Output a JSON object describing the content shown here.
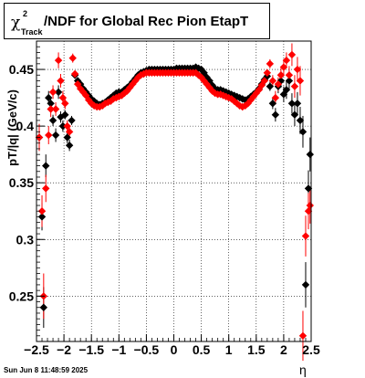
{
  "title": {
    "symbol": "χ",
    "superscript": "2",
    "subscript": "Track",
    "text": "/NDF for Global Rec Pion EtapT"
  },
  "timestamp": "Sun Jun  8 11:48:59 2025",
  "colors": {
    "series_black": "#000000",
    "series_red": "#ff0000",
    "grid": "#000000"
  },
  "chart_data": {
    "type": "scatter",
    "xlabel": "η",
    "ylabel": "pT/|q| (GeV/c)",
    "xlim": [
      -2.5,
      2.5
    ],
    "ylim": [
      0.21,
      0.475
    ],
    "x_ticks": [
      -2.5,
      -2,
      -1.5,
      -1,
      -0.5,
      0,
      0.5,
      1,
      1.5,
      2,
      2.5
    ],
    "x_tick_labels": [
      "−2.5",
      "−2",
      "−1.5",
      "−1",
      "−0.5",
      "0",
      "0.5",
      "1",
      "1.5",
      "2",
      "2.5"
    ],
    "y_ticks": [
      0.25,
      0.3,
      0.35,
      0.4,
      0.45
    ],
    "y_tick_labels": [
      "0.25",
      "0.3",
      "0.35",
      "0.4",
      "0.45"
    ],
    "grid": true,
    "series": [
      {
        "color": "#000000",
        "points": [
          [
            -2.45,
            0.39,
            0.01
          ],
          [
            -2.4,
            0.32,
            0.012
          ],
          [
            -2.37,
            0.24,
            0.018
          ],
          [
            -2.33,
            0.365,
            0.01
          ],
          [
            -2.28,
            0.425,
            0.006
          ],
          [
            -2.24,
            0.42,
            0.006
          ],
          [
            -2.2,
            0.405,
            0.005
          ],
          [
            -2.15,
            0.392,
            0.006
          ],
          [
            -2.1,
            0.43,
            0.006
          ],
          [
            -2.06,
            0.408,
            0.005
          ],
          [
            -2.02,
            0.4,
            0.005
          ],
          [
            -1.98,
            0.41,
            0.004
          ],
          [
            -1.94,
            0.39,
            0.005
          ],
          [
            -1.9,
            0.383,
            0.005
          ],
          [
            -1.86,
            0.405,
            0.004
          ],
          [
            -1.8,
            0.445,
            0.003
          ],
          [
            -1.75,
            0.44,
            0.003
          ],
          [
            -1.7,
            0.437,
            0.002
          ],
          [
            -1.65,
            0.433,
            0.002
          ],
          [
            -1.6,
            0.43,
            0.002
          ],
          [
            -1.55,
            0.427,
            0.002
          ],
          [
            -1.5,
            0.424,
            0.002
          ],
          [
            -1.45,
            0.422,
            0.002
          ],
          [
            -1.4,
            0.42,
            0.002
          ],
          [
            -1.35,
            0.419,
            0.002
          ],
          [
            -1.3,
            0.42,
            0.002
          ],
          [
            -1.25,
            0.421,
            0.002
          ],
          [
            -1.2,
            0.423,
            0.002
          ],
          [
            -1.15,
            0.425,
            0.002
          ],
          [
            -1.1,
            0.427,
            0.002
          ],
          [
            -1.05,
            0.429,
            0.002
          ],
          [
            -1.0,
            0.43,
            0.002
          ],
          [
            -0.95,
            0.43,
            0.002
          ],
          [
            -0.9,
            0.432,
            0.002
          ],
          [
            -0.85,
            0.434,
            0.002
          ],
          [
            -0.8,
            0.436,
            0.002
          ],
          [
            -0.75,
            0.439,
            0.002
          ],
          [
            -0.7,
            0.442,
            0.002
          ],
          [
            -0.65,
            0.445,
            0.002
          ],
          [
            -0.6,
            0.447,
            0.002
          ],
          [
            -0.55,
            0.448,
            0.002
          ],
          [
            -0.5,
            0.449,
            0.002
          ],
          [
            -0.45,
            0.45,
            0.002
          ],
          [
            -0.4,
            0.45,
            0.002
          ],
          [
            -0.35,
            0.45,
            0.002
          ],
          [
            -0.3,
            0.45,
            0.002
          ],
          [
            -0.25,
            0.45,
            0.002
          ],
          [
            -0.2,
            0.45,
            0.002
          ],
          [
            -0.15,
            0.45,
            0.002
          ],
          [
            -0.1,
            0.45,
            0.002
          ],
          [
            -0.05,
            0.45,
            0.002
          ],
          [
            0.0,
            0.45,
            0.002
          ],
          [
            0.05,
            0.451,
            0.002
          ],
          [
            0.1,
            0.451,
            0.002
          ],
          [
            0.15,
            0.451,
            0.002
          ],
          [
            0.2,
            0.451,
            0.002
          ],
          [
            0.25,
            0.451,
            0.002
          ],
          [
            0.3,
            0.451,
            0.002
          ],
          [
            0.35,
            0.451,
            0.002
          ],
          [
            0.4,
            0.452,
            0.002
          ],
          [
            0.45,
            0.451,
            0.002
          ],
          [
            0.5,
            0.45,
            0.002
          ],
          [
            0.55,
            0.447,
            0.002
          ],
          [
            0.6,
            0.443,
            0.002
          ],
          [
            0.65,
            0.44,
            0.002
          ],
          [
            0.7,
            0.436,
            0.002
          ],
          [
            0.75,
            0.433,
            0.002
          ],
          [
            0.8,
            0.432,
            0.002
          ],
          [
            0.85,
            0.432,
            0.002
          ],
          [
            0.9,
            0.431,
            0.002
          ],
          [
            0.95,
            0.43,
            0.002
          ],
          [
            1.0,
            0.429,
            0.002
          ],
          [
            1.05,
            0.428,
            0.002
          ],
          [
            1.1,
            0.427,
            0.002
          ],
          [
            1.15,
            0.426,
            0.002
          ],
          [
            1.2,
            0.425,
            0.002
          ],
          [
            1.25,
            0.424,
            0.002
          ],
          [
            1.3,
            0.423,
            0.002
          ],
          [
            1.35,
            0.424,
            0.002
          ],
          [
            1.4,
            0.426,
            0.002
          ],
          [
            1.45,
            0.428,
            0.002
          ],
          [
            1.5,
            0.43,
            0.002
          ],
          [
            1.55,
            0.433,
            0.002
          ],
          [
            1.6,
            0.437,
            0.002
          ],
          [
            1.65,
            0.441,
            0.003
          ],
          [
            1.7,
            0.444,
            0.003
          ],
          [
            1.75,
            0.435,
            0.004
          ],
          [
            1.8,
            0.42,
            0.005
          ],
          [
            1.85,
            0.41,
            0.006
          ],
          [
            1.9,
            0.435,
            0.006
          ],
          [
            1.95,
            0.44,
            0.006
          ],
          [
            2.0,
            0.428,
            0.007
          ],
          [
            2.05,
            0.432,
            0.008
          ],
          [
            2.1,
            0.44,
            0.008
          ],
          [
            2.15,
            0.42,
            0.009
          ],
          [
            2.2,
            0.41,
            0.01
          ],
          [
            2.25,
            0.42,
            0.01
          ],
          [
            2.3,
            0.405,
            0.012
          ],
          [
            2.35,
            0.395,
            0.014
          ],
          [
            2.4,
            0.26,
            0.02
          ],
          [
            2.45,
            0.345,
            0.016
          ],
          [
            2.48,
            0.375,
            0.015
          ]
        ]
      },
      {
        "color": "#ff0000",
        "points": [
          [
            -2.45,
            0.39,
            0.012
          ],
          [
            -2.4,
            0.325,
            0.014
          ],
          [
            -2.37,
            0.25,
            0.02
          ],
          [
            -2.33,
            0.345,
            0.012
          ],
          [
            -2.28,
            0.392,
            0.008
          ],
          [
            -2.24,
            0.415,
            0.007
          ],
          [
            -2.2,
            0.43,
            0.006
          ],
          [
            -2.15,
            0.415,
            0.006
          ],
          [
            -2.1,
            0.458,
            0.007
          ],
          [
            -2.06,
            0.44,
            0.006
          ],
          [
            -2.02,
            0.425,
            0.006
          ],
          [
            -1.98,
            0.42,
            0.005
          ],
          [
            -1.94,
            0.4,
            0.005
          ],
          [
            -1.9,
            0.395,
            0.005
          ],
          [
            -1.84,
            0.46,
            0.004
          ],
          [
            -1.8,
            0.446,
            0.003
          ],
          [
            -1.75,
            0.437,
            0.003
          ],
          [
            -1.7,
            0.433,
            0.002
          ],
          [
            -1.65,
            0.43,
            0.002
          ],
          [
            -1.6,
            0.427,
            0.002
          ],
          [
            -1.55,
            0.423,
            0.002
          ],
          [
            -1.5,
            0.42,
            0.002
          ],
          [
            -1.45,
            0.418,
            0.002
          ],
          [
            -1.4,
            0.417,
            0.002
          ],
          [
            -1.35,
            0.417,
            0.002
          ],
          [
            -1.3,
            0.418,
            0.002
          ],
          [
            -1.25,
            0.42,
            0.002
          ],
          [
            -1.2,
            0.421,
            0.002
          ],
          [
            -1.15,
            0.422,
            0.002
          ],
          [
            -1.1,
            0.424,
            0.002
          ],
          [
            -1.05,
            0.425,
            0.002
          ],
          [
            -1.0,
            0.426,
            0.002
          ],
          [
            -0.95,
            0.427,
            0.002
          ],
          [
            -0.9,
            0.429,
            0.002
          ],
          [
            -0.85,
            0.431,
            0.002
          ],
          [
            -0.8,
            0.434,
            0.002
          ],
          [
            -0.75,
            0.437,
            0.002
          ],
          [
            -0.7,
            0.44,
            0.002
          ],
          [
            -0.65,
            0.443,
            0.002
          ],
          [
            -0.6,
            0.445,
            0.002
          ],
          [
            -0.55,
            0.446,
            0.002
          ],
          [
            -0.5,
            0.447,
            0.002
          ],
          [
            -0.45,
            0.447,
            0.002
          ],
          [
            -0.4,
            0.447,
            0.002
          ],
          [
            -0.35,
            0.447,
            0.002
          ],
          [
            -0.3,
            0.447,
            0.002
          ],
          [
            -0.25,
            0.447,
            0.002
          ],
          [
            -0.2,
            0.447,
            0.002
          ],
          [
            -0.15,
            0.447,
            0.002
          ],
          [
            -0.1,
            0.447,
            0.002
          ],
          [
            -0.05,
            0.447,
            0.002
          ],
          [
            0.0,
            0.447,
            0.002
          ],
          [
            0.05,
            0.447,
            0.002
          ],
          [
            0.1,
            0.447,
            0.002
          ],
          [
            0.15,
            0.447,
            0.002
          ],
          [
            0.2,
            0.447,
            0.002
          ],
          [
            0.25,
            0.447,
            0.002
          ],
          [
            0.3,
            0.447,
            0.002
          ],
          [
            0.35,
            0.447,
            0.002
          ],
          [
            0.4,
            0.447,
            0.002
          ],
          [
            0.45,
            0.445,
            0.002
          ],
          [
            0.5,
            0.443,
            0.002
          ],
          [
            0.55,
            0.44,
            0.002
          ],
          [
            0.6,
            0.437,
            0.002
          ],
          [
            0.65,
            0.434,
            0.002
          ],
          [
            0.7,
            0.431,
            0.002
          ],
          [
            0.75,
            0.429,
            0.002
          ],
          [
            0.8,
            0.428,
            0.002
          ],
          [
            0.85,
            0.428,
            0.002
          ],
          [
            0.9,
            0.427,
            0.002
          ],
          [
            0.95,
            0.426,
            0.002
          ],
          [
            1.0,
            0.425,
            0.002
          ],
          [
            1.05,
            0.424,
            0.002
          ],
          [
            1.1,
            0.422,
            0.002
          ],
          [
            1.15,
            0.42,
            0.002
          ],
          [
            1.2,
            0.418,
            0.002
          ],
          [
            1.25,
            0.417,
            0.002
          ],
          [
            1.3,
            0.418,
            0.002
          ],
          [
            1.35,
            0.42,
            0.002
          ],
          [
            1.4,
            0.423,
            0.002
          ],
          [
            1.45,
            0.426,
            0.002
          ],
          [
            1.5,
            0.429,
            0.002
          ],
          [
            1.55,
            0.432,
            0.002
          ],
          [
            1.6,
            0.436,
            0.002
          ],
          [
            1.65,
            0.44,
            0.003
          ],
          [
            1.7,
            0.447,
            0.003
          ],
          [
            1.75,
            0.455,
            0.004
          ],
          [
            1.8,
            0.44,
            0.005
          ],
          [
            1.85,
            0.425,
            0.006
          ],
          [
            1.9,
            0.437,
            0.006
          ],
          [
            1.95,
            0.445,
            0.006
          ],
          [
            2.0,
            0.452,
            0.007
          ],
          [
            2.05,
            0.458,
            0.007
          ],
          [
            2.1,
            0.445,
            0.008
          ],
          [
            2.15,
            0.463,
            0.01
          ],
          [
            2.2,
            0.435,
            0.01
          ],
          [
            2.25,
            0.45,
            0.011
          ],
          [
            2.3,
            0.44,
            0.013
          ],
          [
            2.35,
            0.215,
            0.022
          ],
          [
            2.4,
            0.303,
            0.018
          ],
          [
            2.45,
            0.325,
            0.016
          ],
          [
            2.48,
            0.33,
            0.016
          ]
        ]
      }
    ]
  }
}
